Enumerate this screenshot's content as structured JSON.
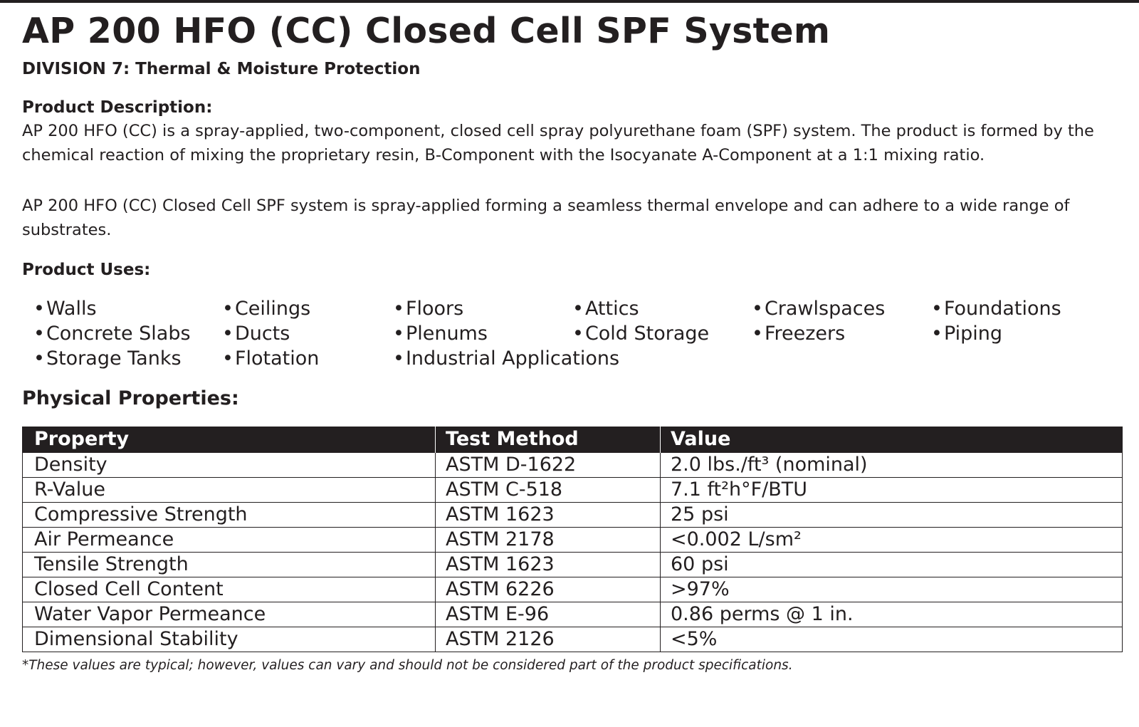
{
  "document": {
    "title": "AP 200 HFO (CC) Closed Cell SPF System",
    "division": "DIVISION 7: Thermal & Moisture Protection",
    "description": {
      "heading": "Product Description:",
      "paragraph1": "AP 200 HFO (CC) is a spray-applied, two-component, closed cell spray polyurethane foam (SPF) system. The product is formed by the chemical reaction of mixing the proprietary resin, B-Component with the Isocyanate A-Component at a 1:1 mixing ratio.",
      "paragraph2": "AP 200 HFO (CC) Closed Cell SPF system is spray-applied forming a seamless thermal envelope and can adhere to a wide range of substrates."
    },
    "uses": {
      "heading": "Product Uses:",
      "bullet": "•",
      "items": [
        "Walls",
        "Ceilings",
        "Floors",
        "Attics",
        "Crawlspaces",
        "Foundations",
        "Concrete Slabs",
        "Ducts",
        "Plenums",
        "Cold Storage",
        "Freezers",
        "Piping",
        "Storage Tanks",
        "Flotation",
        "Industrial Applications"
      ]
    },
    "properties": {
      "heading": "Physical Properties:",
      "columns": [
        "Property",
        "Test Method",
        "Value"
      ],
      "rows": [
        [
          "Density",
          "ASTM D-1622",
          "2.0 lbs./ft³ (nominal)"
        ],
        [
          "R-Value",
          "ASTM C-518",
          "7.1 ft²h°F/BTU"
        ],
        [
          "Compressive Strength",
          "ASTM 1623",
          "25 psi"
        ],
        [
          "Air Permeance",
          "ASTM 2178",
          "<0.002 L/sm²"
        ],
        [
          "Tensile Strength",
          "ASTM 1623",
          "60 psi"
        ],
        [
          "Closed Cell Content",
          "ASTM 6226",
          ">97%"
        ],
        [
          "Water Vapor Permeance",
          "ASTM E-96",
          "0.86 perms @ 1 in."
        ],
        [
          "Dimensional Stability",
          "ASTM 2126",
          "<5%"
        ]
      ]
    },
    "footnote": "*These values are typical; however, values can vary and should not be considered part of the product specifications."
  }
}
